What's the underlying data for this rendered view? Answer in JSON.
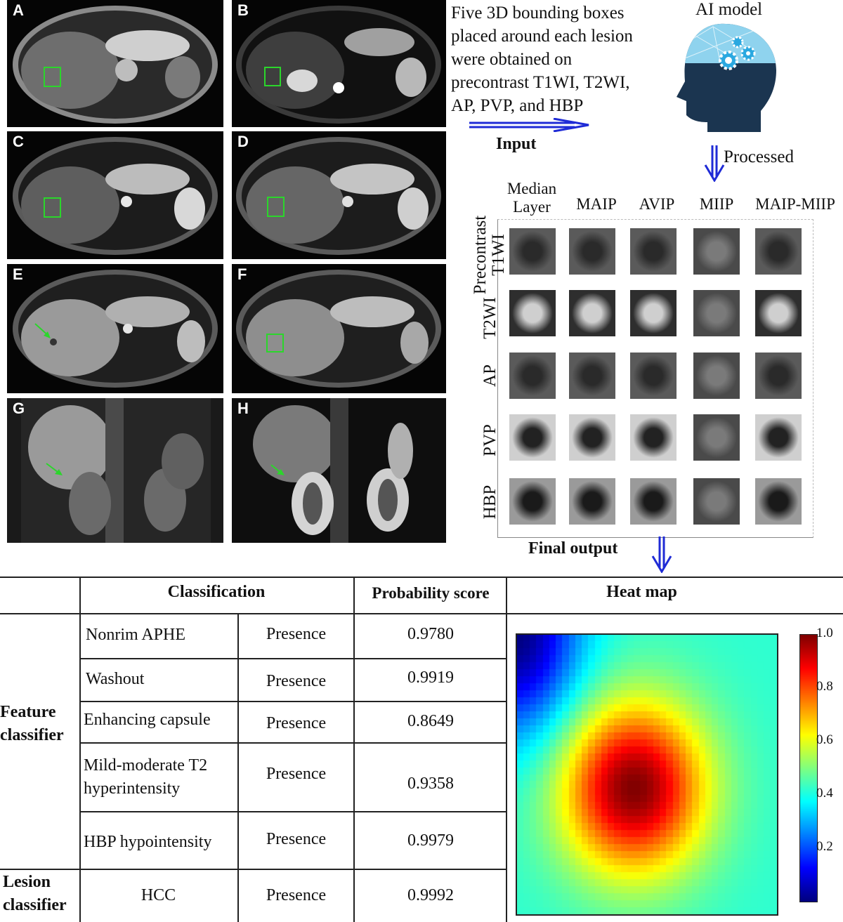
{
  "panels": [
    {
      "label": "A",
      "type": "axial",
      "marker": "box"
    },
    {
      "label": "B",
      "type": "axial",
      "marker": "box"
    },
    {
      "label": "C",
      "type": "axial",
      "marker": "box"
    },
    {
      "label": "D",
      "type": "axial",
      "marker": "box"
    },
    {
      "label": "E",
      "type": "axial",
      "marker": "arrow"
    },
    {
      "label": "F",
      "type": "axial",
      "marker": "box"
    },
    {
      "label": "G",
      "type": "coronal",
      "marker": "arrow"
    },
    {
      "label": "H",
      "type": "coronal",
      "marker": "arrow"
    }
  ],
  "description": {
    "line1": "Five 3D bounding boxes",
    "line2": "placed around each lesion",
    "line3": "were obtained on",
    "line4": "precontrast T1WI, T2WI,",
    "line5": "AP, PVP, and HBP"
  },
  "flow": {
    "input_label": "Input",
    "ai_model_label": "AI model",
    "processed_label": "Processed",
    "final_output_label": "Final output"
  },
  "grid": {
    "columns": [
      {
        "line1": "Median",
        "line2": "Layer"
      },
      {
        "line1": "MAIP",
        "line2": ""
      },
      {
        "line1": "AVIP",
        "line2": ""
      },
      {
        "line1": "MIIP",
        "line2": ""
      },
      {
        "line1": "MAIP-MIIP",
        "line2": ""
      }
    ],
    "rows": [
      {
        "line1": "Precontrast",
        "line2": "T1WI"
      },
      {
        "line1": "T2WI",
        "line2": ""
      },
      {
        "line1": "AP",
        "line2": ""
      },
      {
        "line1": "PVP",
        "line2": ""
      },
      {
        "line1": "HBP",
        "line2": ""
      }
    ]
  },
  "table": {
    "headers": {
      "classification": "Classification",
      "probability": "Probability score",
      "heatmap": "Heat map"
    },
    "groups": {
      "feature_line1": "Feature",
      "feature_line2": "classifier",
      "lesion_line1": "Lesion",
      "lesion_line2": "classifier"
    },
    "rows": [
      {
        "feature": "Nonrim APHE",
        "feature2": "",
        "result": "Presence",
        "score": "0.9780"
      },
      {
        "feature": "Washout",
        "feature2": "",
        "result": "Presence",
        "score": "0.9919"
      },
      {
        "feature": "Enhancing capsule",
        "feature2": "",
        "result": "Presence",
        "score": "0.8649"
      },
      {
        "feature": "Mild-moderate T2",
        "feature2": "hyperintensity",
        "result": "Presence",
        "score": "0.9358"
      },
      {
        "feature": "HBP hypointensity",
        "feature2": "",
        "result": "Presence",
        "score": "0.9979"
      },
      {
        "feature": "HCC",
        "feature2": "",
        "result": "Presence",
        "score": "0.9992"
      }
    ]
  },
  "colorbar": {
    "ticks": [
      "1.0",
      "0.8",
      "0.6",
      "0.4",
      "0.2"
    ],
    "tick_values": [
      1.0,
      0.8,
      0.6,
      0.4,
      0.2
    ]
  },
  "colors": {
    "arrow_blue": "#1f2bd6",
    "box_green": "#2bd62b",
    "head_dark": "#1b3550",
    "gear_blue": "#2aa8e0"
  }
}
